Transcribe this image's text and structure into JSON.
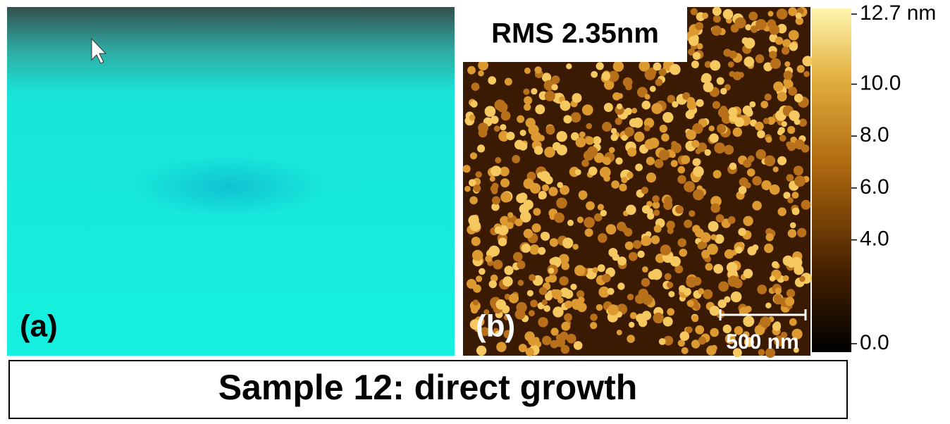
{
  "panel_a": {
    "label": "(a)"
  },
  "panel_b": {
    "label": "(b)",
    "rms": "RMS 2.35nm",
    "scale_bar": "500 nm"
  },
  "colorbar": {
    "lim": [
      0,
      12.7
    ],
    "ticks": [
      {
        "value": 12.7,
        "label": "12.7 nm"
      },
      {
        "value": 10,
        "label": "10.0"
      },
      {
        "value": 8,
        "label": "8.0"
      },
      {
        "value": 6,
        "label": "6.0"
      },
      {
        "value": 4,
        "label": "4.0"
      },
      {
        "value": 0,
        "label": "0.0"
      }
    ]
  },
  "caption": "Sample 12: direct growth"
}
